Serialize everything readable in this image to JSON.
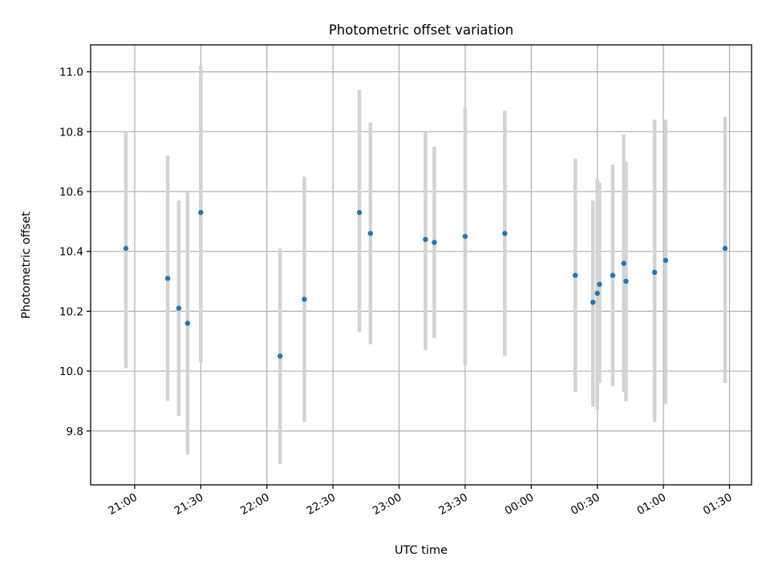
{
  "chart_data": {
    "type": "scatter",
    "title": "Photometric offset variation",
    "xlabel": "UTC time",
    "ylabel": "Photometric offset",
    "x_ticks": [
      "21:00",
      "21:30",
      "22:00",
      "22:30",
      "23:00",
      "23:30",
      "00:00",
      "00:30",
      "01:00",
      "01:30"
    ],
    "y_ticks": [
      "9.8",
      "10.0",
      "10.2",
      "10.4",
      "10.6",
      "10.8",
      "11.0"
    ],
    "x_axis": {
      "kind": "time",
      "start": "20:40",
      "end": "01:40",
      "tick_values": [
        "21:00",
        "21:30",
        "22:00",
        "22:30",
        "23:00",
        "23:30",
        "00:00",
        "00:30",
        "01:00",
        "01:30"
      ]
    },
    "ylim": [
      9.62,
      11.09
    ],
    "y_tick_values": [
      9.8,
      10.0,
      10.2,
      10.4,
      10.6,
      10.8,
      11.0
    ],
    "grid": true,
    "error_bar_color": "#d3d3d3",
    "point_color": "#1f77b4",
    "points": [
      {
        "t": "20:56",
        "y": 10.41,
        "low": 10.01,
        "high": 10.8
      },
      {
        "t": "21:15",
        "y": 10.31,
        "low": 9.9,
        "high": 10.72
      },
      {
        "t": "21:20",
        "y": 10.21,
        "low": 9.85,
        "high": 10.57
      },
      {
        "t": "21:24",
        "y": 10.16,
        "low": 9.72,
        "high": 10.6
      },
      {
        "t": "21:30",
        "y": 10.53,
        "low": 10.03,
        "high": 11.02
      },
      {
        "t": "22:06",
        "y": 10.05,
        "low": 9.69,
        "high": 10.41
      },
      {
        "t": "22:17",
        "y": 10.24,
        "low": 9.83,
        "high": 10.65
      },
      {
        "t": "22:42",
        "y": 10.53,
        "low": 10.13,
        "high": 10.94
      },
      {
        "t": "22:47",
        "y": 10.46,
        "low": 10.09,
        "high": 10.83
      },
      {
        "t": "23:12",
        "y": 10.44,
        "low": 10.07,
        "high": 10.8
      },
      {
        "t": "23:16",
        "y": 10.43,
        "low": 10.11,
        "high": 10.75
      },
      {
        "t": "23:30",
        "y": 10.45,
        "low": 10.02,
        "high": 10.88
      },
      {
        "t": "23:48",
        "y": 10.46,
        "low": 10.05,
        "high": 10.87
      },
      {
        "t": "00:20",
        "y": 10.32,
        "low": 9.93,
        "high": 10.71
      },
      {
        "t": "00:28",
        "y": 10.23,
        "low": 9.88,
        "high": 10.57
      },
      {
        "t": "00:30",
        "y": 10.26,
        "low": 9.87,
        "high": 10.64
      },
      {
        "t": "00:31",
        "y": 10.29,
        "low": 9.96,
        "high": 10.63
      },
      {
        "t": "00:37",
        "y": 10.32,
        "low": 9.95,
        "high": 10.69
      },
      {
        "t": "00:42",
        "y": 10.36,
        "low": 9.93,
        "high": 10.79
      },
      {
        "t": "00:43",
        "y": 10.3,
        "low": 9.9,
        "high": 10.7
      },
      {
        "t": "00:56",
        "y": 10.33,
        "low": 9.83,
        "high": 10.84
      },
      {
        "t": "01:01",
        "y": 10.37,
        "low": 9.89,
        "high": 10.84
      },
      {
        "t": "01:28",
        "y": 10.41,
        "low": 9.96,
        "high": 10.85
      }
    ]
  }
}
